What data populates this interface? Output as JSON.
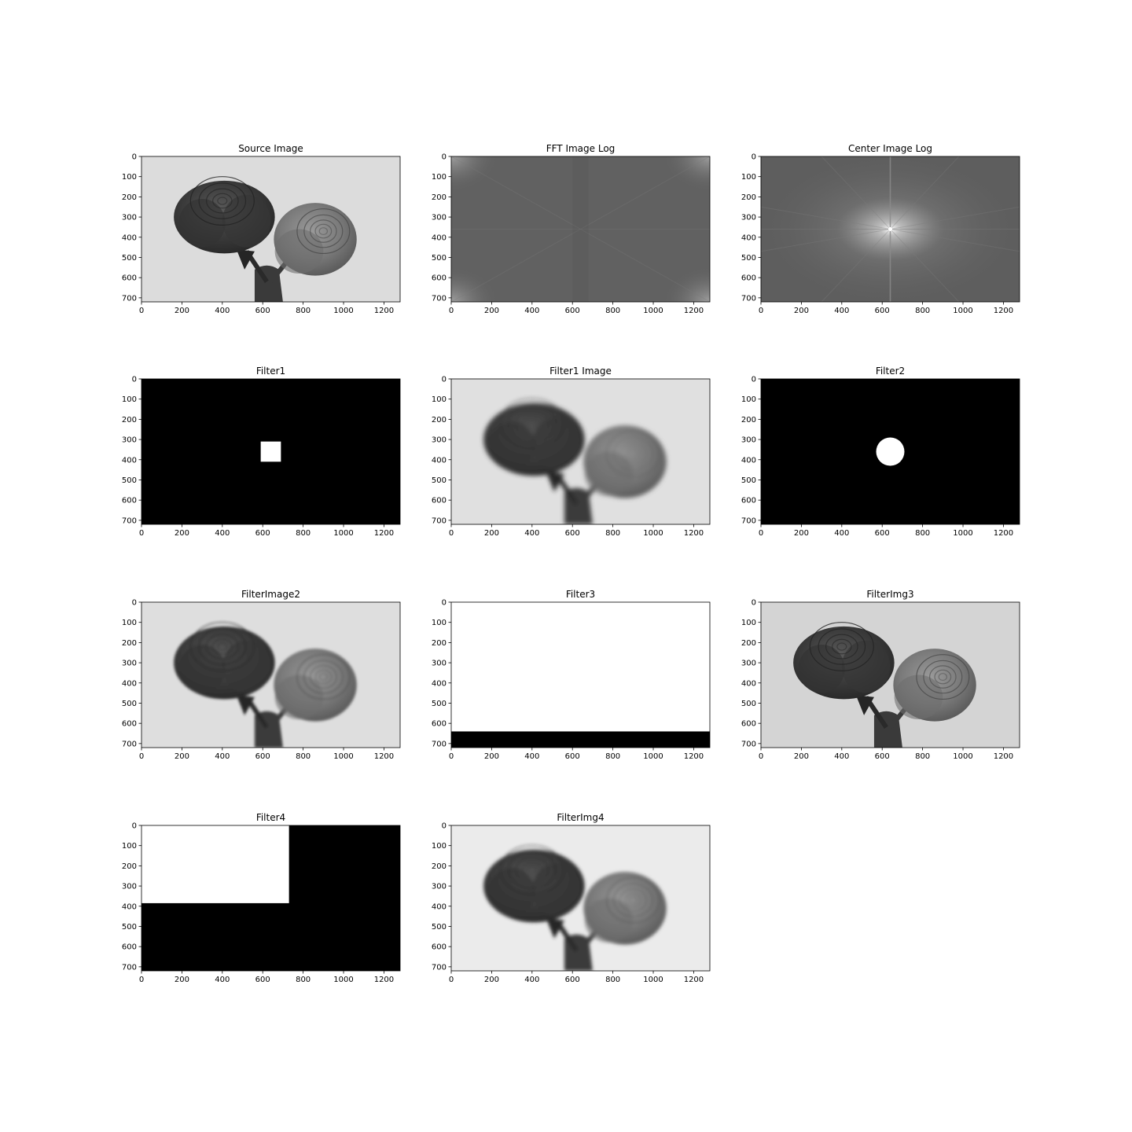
{
  "chart_data": [
    {
      "type": "heatmap",
      "kind": "image-rose",
      "title": "Source Image",
      "xlim": [
        0,
        1280
      ],
      "ylim": [
        720,
        0
      ],
      "xticks": [
        0,
        200,
        400,
        600,
        800,
        1000,
        1200
      ],
      "yticks": [
        0,
        100,
        200,
        300,
        400,
        500,
        600,
        700
      ],
      "colormap": "gray",
      "background": "#dcdcdc",
      "blur": 0
    },
    {
      "type": "heatmap",
      "kind": "spectrum-uncentered",
      "title": "FFT Image Log",
      "xlim": [
        0,
        1280
      ],
      "ylim": [
        720,
        0
      ],
      "xticks": [
        0,
        200,
        400,
        600,
        800,
        1000,
        1200
      ],
      "yticks": [
        0,
        100,
        200,
        300,
        400,
        500,
        600,
        700
      ],
      "colormap": "gray",
      "background": "#616161"
    },
    {
      "type": "heatmap",
      "kind": "spectrum-centered",
      "title": "Center Image Log",
      "xlim": [
        0,
        1280
      ],
      "ylim": [
        720,
        0
      ],
      "xticks": [
        0,
        200,
        400,
        600,
        800,
        1000,
        1200
      ],
      "yticks": [
        0,
        100,
        200,
        300,
        400,
        500,
        600,
        700
      ],
      "colormap": "gray",
      "background": "#5e5e5e",
      "center": [
        640,
        360
      ]
    },
    {
      "type": "heatmap",
      "kind": "mask",
      "title": "Filter1",
      "xlim": [
        0,
        1280
      ],
      "ylim": [
        720,
        0
      ],
      "xticks": [
        0,
        200,
        400,
        600,
        800,
        1000,
        1200
      ],
      "yticks": [
        0,
        100,
        200,
        300,
        400,
        500,
        600,
        700
      ],
      "colormap": "gray",
      "background": "#000000",
      "mask": {
        "shape": "rect",
        "x0": 590,
        "x1": 690,
        "y0": 310,
        "y1": 410,
        "value": 1
      }
    },
    {
      "type": "heatmap",
      "kind": "image-rose",
      "title": "Filter1 Image",
      "xlim": [
        0,
        1280
      ],
      "ylim": [
        720,
        0
      ],
      "xticks": [
        0,
        200,
        400,
        600,
        800,
        1000,
        1200
      ],
      "yticks": [
        0,
        100,
        200,
        300,
        400,
        500,
        600,
        700
      ],
      "colormap": "gray",
      "background": "#e0e0e0",
      "blur": 3
    },
    {
      "type": "heatmap",
      "kind": "mask",
      "title": "Filter2",
      "xlim": [
        0,
        1280
      ],
      "ylim": [
        720,
        0
      ],
      "xticks": [
        0,
        200,
        400,
        600,
        800,
        1000,
        1200
      ],
      "yticks": [
        0,
        100,
        200,
        300,
        400,
        500,
        600,
        700
      ],
      "colormap": "gray",
      "background": "#000000",
      "mask": {
        "shape": "circle",
        "cx": 640,
        "cy": 360,
        "r": 70,
        "value": 1
      }
    },
    {
      "type": "heatmap",
      "kind": "image-rose",
      "title": "FilterImage2",
      "xlim": [
        0,
        1280
      ],
      "ylim": [
        720,
        0
      ],
      "xticks": [
        0,
        200,
        400,
        600,
        800,
        1000,
        1200
      ],
      "yticks": [
        0,
        100,
        200,
        300,
        400,
        500,
        600,
        700
      ],
      "colormap": "gray",
      "background": "#dedede",
      "blur": 1.5
    },
    {
      "type": "heatmap",
      "kind": "mask",
      "title": "Filter3",
      "xlim": [
        0,
        1280
      ],
      "ylim": [
        720,
        0
      ],
      "xticks": [
        0,
        200,
        400,
        600,
        800,
        1000,
        1200
      ],
      "yticks": [
        0,
        100,
        200,
        300,
        400,
        500,
        600,
        700
      ],
      "colormap": "gray",
      "background": "#ffffff",
      "mask": {
        "shape": "rect",
        "x0": 0,
        "x1": 1280,
        "y0": 640,
        "y1": 720,
        "value": 0
      }
    },
    {
      "type": "heatmap",
      "kind": "image-rose",
      "title": "FilterImg3",
      "xlim": [
        0,
        1280
      ],
      "ylim": [
        720,
        0
      ],
      "xticks": [
        0,
        200,
        400,
        600,
        800,
        1000,
        1200
      ],
      "yticks": [
        0,
        100,
        200,
        300,
        400,
        500,
        600,
        700
      ],
      "colormap": "gray",
      "background": "#d4d4d4",
      "blur": 0
    },
    {
      "type": "heatmap",
      "kind": "mask",
      "title": "Filter4",
      "xlim": [
        0,
        1280
      ],
      "ylim": [
        720,
        0
      ],
      "xticks": [
        0,
        200,
        400,
        600,
        800,
        1000,
        1200
      ],
      "yticks": [
        0,
        100,
        200,
        300,
        400,
        500,
        600,
        700
      ],
      "colormap": "gray",
      "background": "#000000",
      "mask": {
        "shape": "rect",
        "x0": 0,
        "x1": 730,
        "y0": 0,
        "y1": 385,
        "value": 1
      }
    },
    {
      "type": "heatmap",
      "kind": "image-rose",
      "title": "FilterImg4",
      "xlim": [
        0,
        1280
      ],
      "ylim": [
        720,
        0
      ],
      "xticks": [
        0,
        200,
        400,
        600,
        800,
        1000,
        1200
      ],
      "yticks": [
        0,
        100,
        200,
        300,
        400,
        500,
        600,
        700
      ],
      "colormap": "gray",
      "background": "#ebebeb",
      "blur": 2
    }
  ]
}
